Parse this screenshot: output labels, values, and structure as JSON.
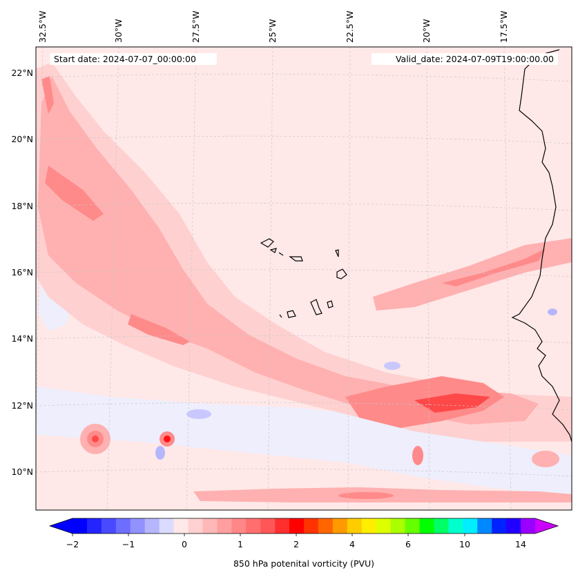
{
  "map": {
    "start_date": "Start date: 2024-07-07_00:00:00",
    "valid_date": "Valid_date: 2024-07-09T19:00:00.00",
    "lon_labels": [
      "32.5°W",
      "30°W",
      "27.5°W",
      "25°W",
      "22.5°W",
      "20°W",
      "17.5°W"
    ],
    "lat_labels": [
      "22°N",
      "20°N",
      "18°N",
      "16°N",
      "14°N",
      "12°N",
      "10°N"
    ],
    "region": "Cape Verde Islands and West African coast",
    "variable": "850 hPa potential vorticity"
  },
  "colorbar": {
    "title": "850 hPa potenital vorticity (PVU)",
    "tick_labels": [
      "−2",
      "−1",
      "0",
      "1",
      "2",
      "4",
      "6",
      "10",
      "14"
    ],
    "colors": [
      "#0000ff",
      "#2424ff",
      "#4949ff",
      "#6d6dff",
      "#9292ff",
      "#b6b6ff",
      "#dbdbff",
      "#ffe8e8",
      "#ffd0d0",
      "#ffb8b8",
      "#ff9f9f",
      "#ff8787",
      "#ff6f6f",
      "#ff5757",
      "#ff2f2f",
      "#ff0000",
      "#ff3300",
      "#ff6600",
      "#ff9900",
      "#ffcc00",
      "#ffee00",
      "#ddff00",
      "#aaff00",
      "#66ff00",
      "#00ff00",
      "#00ff66",
      "#00ffcc",
      "#00eeff",
      "#0088ff",
      "#0022ff",
      "#2200ff",
      "#9900ff"
    ],
    "under_color": "#0000ff",
    "over_color": "#cc00ff"
  },
  "colors": {
    "background_field": "#ffe8e8",
    "light_pink": "#ffd0d0",
    "mid_pink": "#ffb0b0",
    "strong_pink": "#ff8a8a",
    "red": "#ff3030",
    "negative": "#dbdbff"
  }
}
